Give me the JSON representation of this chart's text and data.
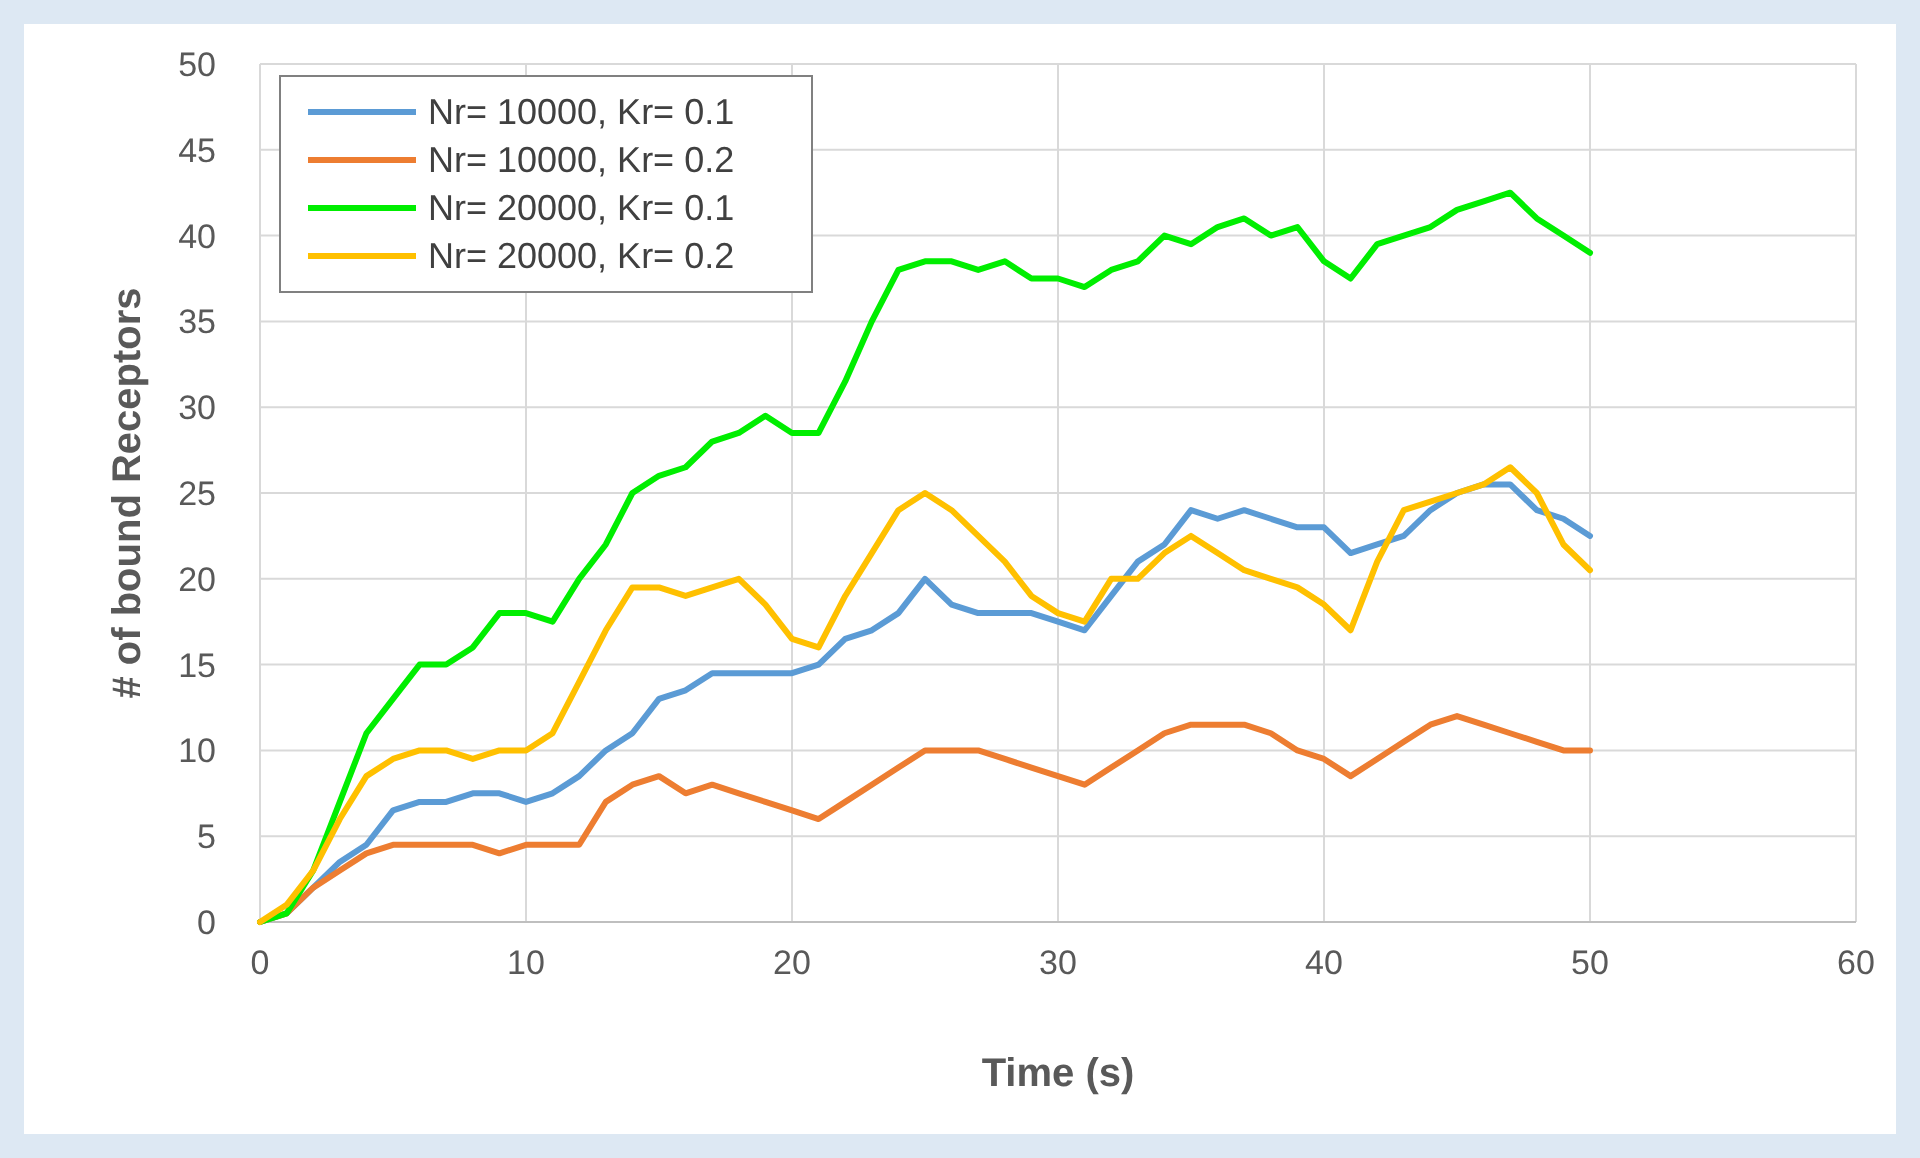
{
  "chart_data": {
    "type": "line",
    "xlabel": "Time (s)",
    "ylabel": "# of bound Receptors",
    "x": [
      0,
      1,
      2,
      3,
      4,
      5,
      6,
      7,
      8,
      9,
      10,
      11,
      12,
      13,
      14,
      15,
      16,
      17,
      18,
      19,
      20,
      21,
      22,
      23,
      24,
      25,
      26,
      27,
      28,
      29,
      30,
      31,
      32,
      33,
      34,
      35,
      36,
      37,
      38,
      39,
      40,
      41,
      42,
      43,
      44,
      45,
      46,
      47,
      48,
      49,
      50
    ],
    "series": [
      {
        "name": "Nr= 10000, Kr= 0.1",
        "color": "#5b9bd5",
        "values": [
          0,
          0.5,
          2,
          3.5,
          4.5,
          6.5,
          7,
          7,
          7.5,
          7.5,
          7,
          7.5,
          8.5,
          10,
          11,
          13,
          13.5,
          14.5,
          14.5,
          14.5,
          14.5,
          15,
          16.5,
          17,
          18,
          20,
          18.5,
          18,
          18,
          18,
          17.5,
          17,
          19,
          21,
          22,
          24,
          23.5,
          24,
          23.5,
          23,
          23,
          21.5,
          22,
          22.5,
          24,
          25,
          25.5,
          25.5,
          24,
          23.5,
          22.5
        ]
      },
      {
        "name": "Nr= 10000, Kr= 0.2",
        "color": "#ed7d31",
        "values": [
          0,
          0.5,
          2,
          3,
          4,
          4.5,
          4.5,
          4.5,
          4.5,
          4,
          4.5,
          4.5,
          4.5,
          7,
          8,
          8.5,
          7.5,
          8,
          7.5,
          7,
          6.5,
          6,
          7,
          8,
          9,
          10,
          10,
          10,
          9.5,
          9,
          8.5,
          8,
          9,
          10,
          11,
          11.5,
          11.5,
          11.5,
          11,
          10,
          9.5,
          8.5,
          9.5,
          10.5,
          11.5,
          12,
          11.5,
          11,
          10.5,
          10,
          10
        ]
      },
      {
        "name": "Nr= 20000, Kr= 0.1",
        "color": "#00ee00",
        "values": [
          0,
          0.5,
          3,
          7,
          11,
          13,
          15,
          15,
          16,
          18,
          18,
          17.5,
          20,
          22,
          25,
          26,
          26.5,
          28,
          28.5,
          29.5,
          28.5,
          28.5,
          31.5,
          35,
          38,
          38.5,
          38.5,
          38,
          38.5,
          37.5,
          37.5,
          37,
          38,
          38.5,
          40,
          39.5,
          40.5,
          41,
          40,
          40.5,
          38.5,
          37.5,
          39.5,
          40,
          40.5,
          41.5,
          42,
          42.5,
          41,
          40,
          39
        ]
      },
      {
        "name": "Nr= 20000, Kr= 0.2",
        "color": "#ffc000",
        "values": [
          0,
          1,
          3,
          6,
          8.5,
          9.5,
          10,
          10,
          9.5,
          10,
          10,
          11,
          14,
          17,
          19.5,
          19.5,
          19,
          19.5,
          20,
          18.5,
          16.5,
          16,
          19,
          21.5,
          24,
          25,
          24,
          22.5,
          21,
          19,
          18,
          17.5,
          20,
          20,
          21.5,
          22.5,
          21.5,
          20.5,
          20,
          19.5,
          18.5,
          17,
          21,
          24,
          24.5,
          25,
          25.5,
          26.5,
          25,
          22,
          20.5
        ]
      }
    ],
    "xlim": [
      0,
      60
    ],
    "xticks": [
      0,
      10,
      20,
      30,
      40,
      50,
      60
    ],
    "ylim": [
      0,
      50
    ],
    "yticks": [
      0,
      5,
      10,
      15,
      20,
      25,
      30,
      35,
      40,
      45,
      50
    ],
    "grid": true,
    "legend": "top left"
  }
}
